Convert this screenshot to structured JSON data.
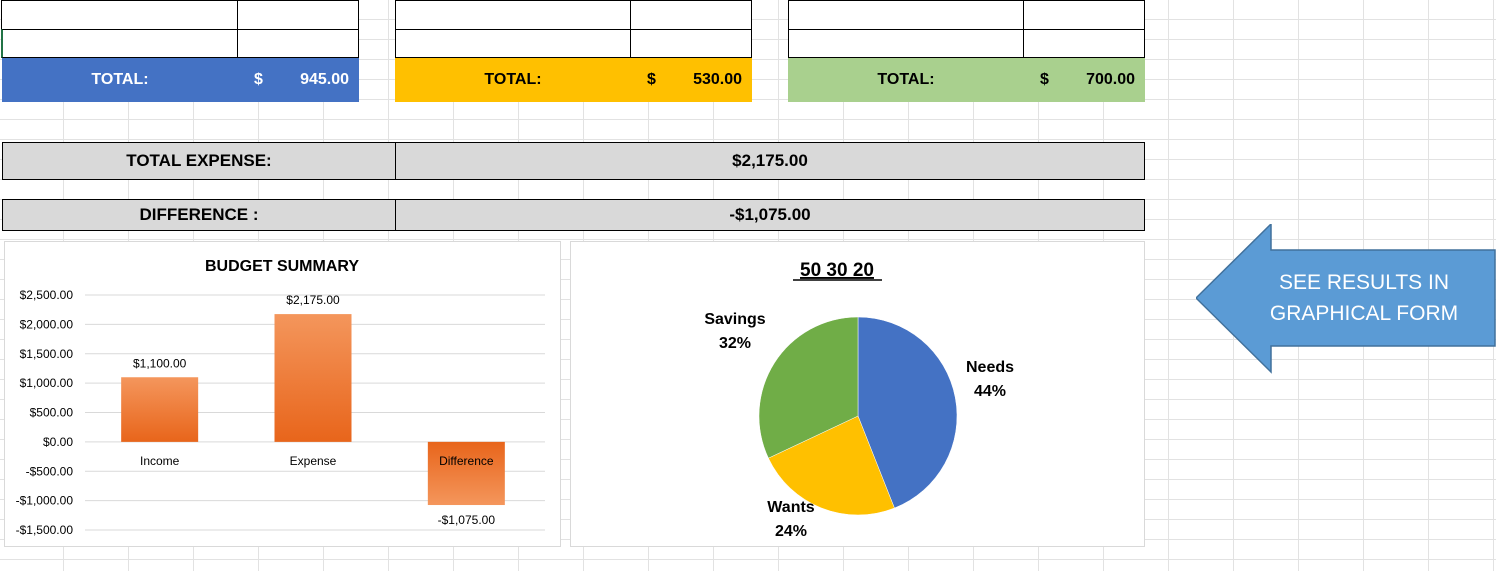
{
  "colors": {
    "income": "#4472c4",
    "needs_band": "#ffc000",
    "savings_band": "#a9d08e",
    "gray": "#d9d9d9",
    "bar_orange": "#ed7d31",
    "arrow": "#5b9bd5"
  },
  "totals": [
    {
      "label": "TOTAL:",
      "currency": "$",
      "amount": "945.00"
    },
    {
      "label": "TOTAL:",
      "currency": "$",
      "amount": "530.00"
    },
    {
      "label": "TOTAL:",
      "currency": "$",
      "amount": "700.00"
    }
  ],
  "summary": {
    "total_expense_label": "TOTAL EXPENSE:",
    "total_expense_value": "$2,175.00",
    "difference_label": "DIFFERENCE :",
    "difference_value": "-$1,075.00"
  },
  "arrow_callout": {
    "line1": "SEE RESULTS IN",
    "line2": "GRAPHICAL FORM"
  },
  "chart_data": [
    {
      "type": "bar",
      "title": "BUDGET SUMMARY",
      "categories": [
        "Income",
        "Expense",
        "Difference"
      ],
      "values": [
        1100,
        2175,
        -1075
      ],
      "data_labels": [
        "$1,100.00",
        "$2,175.00",
        "-$1,075.00"
      ],
      "ylim": [
        -1500,
        2500
      ],
      "yticks": [
        2500,
        2000,
        1500,
        1000,
        500,
        0,
        -500,
        -1000,
        -1500
      ],
      "ytick_labels": [
        "$2,500.00",
        "$2,000.00",
        "$1,500.00",
        "$1,000.00",
        "$500.00",
        "$0.00",
        "-$500.00",
        "-$1,000.00",
        "-$1,500.00"
      ],
      "grid": true,
      "legend": "none"
    },
    {
      "type": "pie",
      "title": "50 30 20",
      "categories": [
        "Needs",
        "Wants",
        "Savings"
      ],
      "values": [
        44,
        24,
        32
      ],
      "percent_labels": [
        "44%",
        "24%",
        "32%"
      ],
      "colors": [
        "#4472c4",
        "#ffc000",
        "#70ad47"
      ],
      "legend": "none"
    }
  ]
}
